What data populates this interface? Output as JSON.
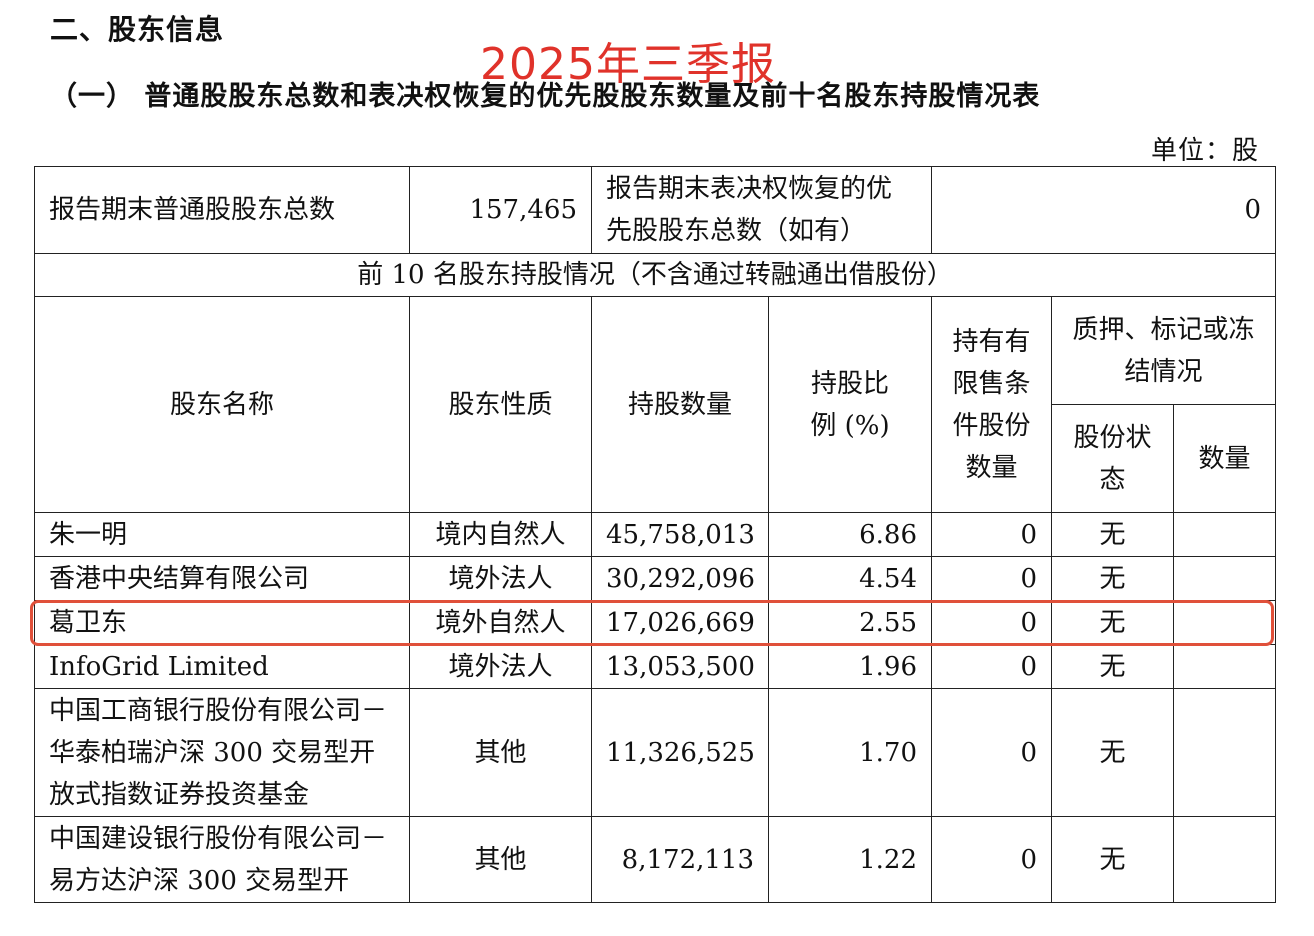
{
  "document": {
    "section_title": "二、股东信息",
    "overlay_title": "2025年三季报",
    "sub_title": "（一） 普通股股东总数和表决权恢复的优先股股东数量及前十名股东持股情况表",
    "unit": "单位：股"
  },
  "summary": {
    "common_holders_label": "报告期末普通股股东总数",
    "common_holders_value": "157,465",
    "preferred_holders_label": "报告期末表决权恢复的优先股股东总数（如有）",
    "preferred_holders_value": "0"
  },
  "top10_title": "前 10 名股东持股情况（不含通过转融通出借股份）",
  "headers": {
    "name": "股东名称",
    "nature": "股东性质",
    "shares": "持股数量",
    "ratio": "持股比例 (%)",
    "restricted": "持有有限售条件股份数量",
    "pledge_group": "质押、标记或冻结情况",
    "pledge_status": "股份状态",
    "pledge_qty": "数量"
  },
  "rows": [
    {
      "name": "朱一明",
      "nature": "境内自然人",
      "shares": "45,758,013",
      "ratio": "6.86",
      "restricted": "0",
      "status": "无",
      "qty": ""
    },
    {
      "name": "香港中央结算有限公司",
      "nature": "境外法人",
      "shares": "30,292,096",
      "ratio": "4.54",
      "restricted": "0",
      "status": "无",
      "qty": ""
    },
    {
      "name": "葛卫东",
      "nature": "境外自然人",
      "shares": "17,026,669",
      "ratio": "2.55",
      "restricted": "0",
      "status": "无",
      "qty": ""
    },
    {
      "name": "InfoGrid Limited",
      "nature": "境外法人",
      "shares": "13,053,500",
      "ratio": "1.96",
      "restricted": "0",
      "status": "无",
      "qty": ""
    },
    {
      "name": "中国工商银行股份有限公司－华泰柏瑞沪深 300 交易型开放式指数证券投资基金",
      "nature": "其他",
      "shares": "11,326,525",
      "ratio": "1.70",
      "restricted": "0",
      "status": "无",
      "qty": ""
    },
    {
      "name": "中国建设银行股份有限公司－易方达沪深 300 交易型开",
      "nature": "其他",
      "shares": "8,172,113",
      "ratio": "1.22",
      "restricted": "0",
      "status": "无",
      "qty": ""
    }
  ],
  "highlight_color": "#e0503a",
  "overlay_color": "#e0322a"
}
